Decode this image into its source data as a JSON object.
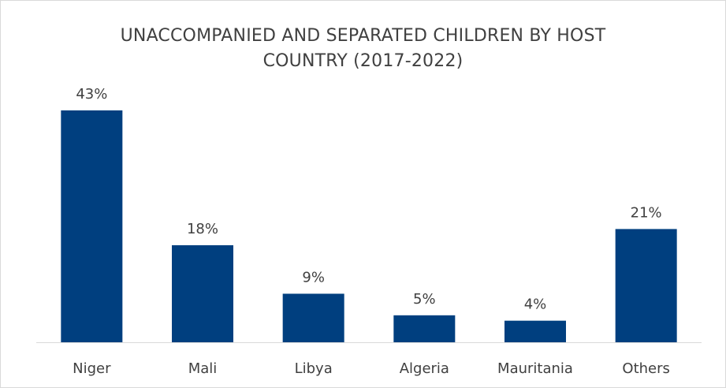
{
  "chart_data": {
    "type": "bar",
    "title_lines": [
      "UNACCOMPANIED AND SEPARATED CHILDREN BY HOST",
      "COUNTRY (2017-2022)"
    ],
    "categories": [
      "Niger",
      "Mali",
      "Libya",
      "Algeria",
      "Mauritania",
      "Others"
    ],
    "values": [
      43,
      18,
      9,
      5,
      4,
      21
    ],
    "value_labels": [
      "43%",
      "18%",
      "9%",
      "5%",
      "4%",
      "21%"
    ],
    "ylim": [
      0,
      43
    ],
    "grid": false,
    "legend": "none",
    "bar_color": "#003f7f",
    "axis_color": "#d9d9d9"
  }
}
